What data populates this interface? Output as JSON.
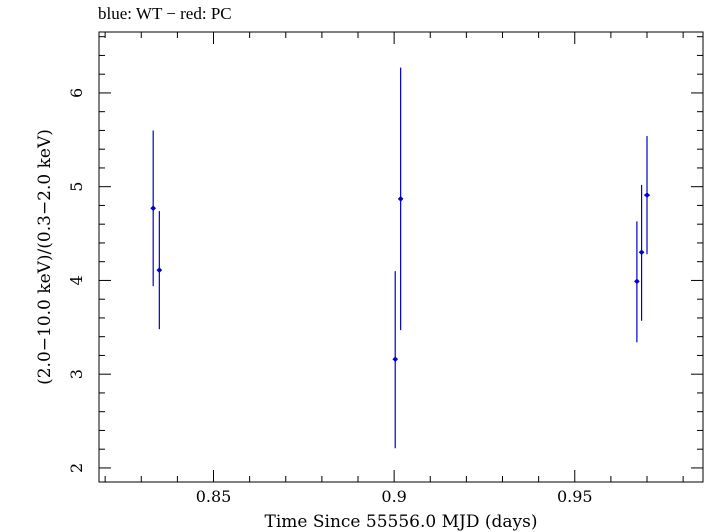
{
  "chart_data": {
    "type": "scatter",
    "title": "blue: WT − red: PC",
    "xlabel": "Time Since 55556.0 MJD (days)",
    "ylabel": "(2.0−10.0 keV)/(0.3−2.0 keV)",
    "xlim": [
      0.8183,
      0.9855
    ],
    "ylim": [
      1.85,
      6.65
    ],
    "x_ticks": [
      0.85,
      0.9,
      0.95
    ],
    "x_tick_labels": [
      "0.85",
      "0.9",
      "0.95"
    ],
    "y_ticks": [
      2,
      3,
      4,
      5,
      6
    ],
    "y_tick_labels": [
      "2",
      "3",
      "4",
      "5",
      "6"
    ],
    "grid": false,
    "colors": {
      "series": "#0000cc",
      "axes": "#000000"
    },
    "series": [
      {
        "points": [
          {
            "x": 0.8333,
            "y": 4.77,
            "ylo": 3.94,
            "yhi": 5.6,
            "xerr": 0.0004
          },
          {
            "x": 0.835,
            "y": 4.11,
            "ylo": 3.48,
            "yhi": 4.74,
            "xerr": 0.0004
          },
          {
            "x": 0.9003,
            "y": 3.16,
            "ylo": 2.21,
            "yhi": 4.1,
            "xerr": 0.0004
          },
          {
            "x": 0.9018,
            "y": 4.87,
            "ylo": 3.47,
            "yhi": 6.27,
            "xerr": 0.0004
          },
          {
            "x": 0.9672,
            "y": 3.99,
            "ylo": 3.34,
            "yhi": 4.63,
            "xerr": 0.0004
          },
          {
            "x": 0.9685,
            "y": 4.3,
            "ylo": 3.57,
            "yhi": 5.02,
            "xerr": 0.0004
          },
          {
            "x": 0.97,
            "y": 4.91,
            "ylo": 4.28,
            "yhi": 5.54,
            "xerr": 0.0008
          }
        ]
      }
    ]
  }
}
